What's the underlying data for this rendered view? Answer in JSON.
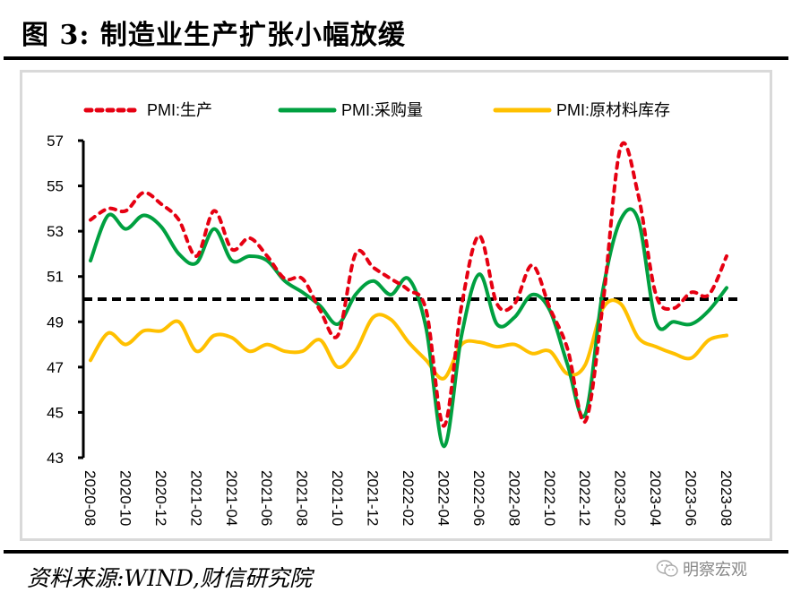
{
  "figure": {
    "title": "图 3:  制造业生产扩张小幅放缓",
    "source": "资料来源:WIND,财信研究院",
    "watermark": "明察宏观"
  },
  "chart_data": {
    "type": "line",
    "title": "制造业生产扩张小幅放缓",
    "xlabel": "",
    "ylabel": "",
    "ylim": [
      43,
      57
    ],
    "yticks": [
      43,
      45,
      47,
      49,
      51,
      53,
      55,
      57
    ],
    "grid": false,
    "legend_position": "top",
    "x": [
      "2020-08",
      "2020-09",
      "2020-10",
      "2020-11",
      "2020-12",
      "2021-01",
      "2021-02",
      "2021-03",
      "2021-04",
      "2021-05",
      "2021-06",
      "2021-07",
      "2021-08",
      "2021-09",
      "2021-10",
      "2021-11",
      "2021-12",
      "2022-01",
      "2022-02",
      "2022-03",
      "2022-04",
      "2022-05",
      "2022-06",
      "2022-07",
      "2022-08",
      "2022-09",
      "2022-10",
      "2022-11",
      "2022-12",
      "2023-01",
      "2023-02",
      "2023-03",
      "2023-04",
      "2023-05",
      "2023-06",
      "2023-07",
      "2023-08"
    ],
    "xtick_labels": [
      "2020-08",
      "2020-10",
      "2020-12",
      "2021-02",
      "2021-04",
      "2021-06",
      "2021-08",
      "2021-10",
      "2021-12",
      "2022-02",
      "2022-04",
      "2022-06",
      "2022-08",
      "2022-10",
      "2022-12",
      "2023-02",
      "2023-04",
      "2023-06",
      "2023-08"
    ],
    "reference_line": {
      "value": 50,
      "style": "dashed",
      "color": "#000000"
    },
    "series": [
      {
        "name": "PMI:生产",
        "style": "dotted",
        "color": "#e60012",
        "values": [
          53.5,
          54.0,
          53.9,
          54.7,
          54.2,
          53.5,
          51.9,
          53.9,
          52.2,
          52.7,
          51.9,
          50.9,
          50.9,
          49.5,
          48.4,
          52.0,
          51.4,
          50.9,
          50.4,
          49.5,
          44.4,
          49.7,
          52.8,
          49.8,
          49.8,
          51.5,
          49.6,
          47.8,
          44.6,
          49.8,
          56.7,
          54.6,
          50.2,
          49.6,
          50.3,
          50.2,
          51.9
        ]
      },
      {
        "name": "PMI:采购量",
        "style": "solid",
        "color": "#00a040",
        "values": [
          51.7,
          53.7,
          53.1,
          53.7,
          53.2,
          52.0,
          51.6,
          53.1,
          51.7,
          51.9,
          51.7,
          50.8,
          50.3,
          49.7,
          48.9,
          50.2,
          50.8,
          50.2,
          50.9,
          48.7,
          43.5,
          48.4,
          51.1,
          48.9,
          49.2,
          50.2,
          49.5,
          47.1,
          44.9,
          50.4,
          53.5,
          53.5,
          49.0,
          49.0,
          48.9,
          49.5,
          50.5
        ]
      },
      {
        "name": "PMI:原材料库存",
        "style": "solid",
        "color": "#ffc000",
        "values": [
          47.3,
          48.5,
          48.0,
          48.6,
          48.6,
          49.0,
          47.7,
          48.4,
          48.3,
          47.7,
          48.0,
          47.7,
          47.7,
          48.2,
          47.0,
          47.7,
          49.2,
          49.1,
          48.1,
          47.3,
          46.5,
          48.0,
          48.1,
          47.9,
          48.0,
          47.6,
          47.7,
          46.7,
          47.1,
          49.6,
          49.8,
          48.3,
          47.9,
          47.6,
          47.4,
          48.2,
          48.4
        ]
      }
    ]
  }
}
